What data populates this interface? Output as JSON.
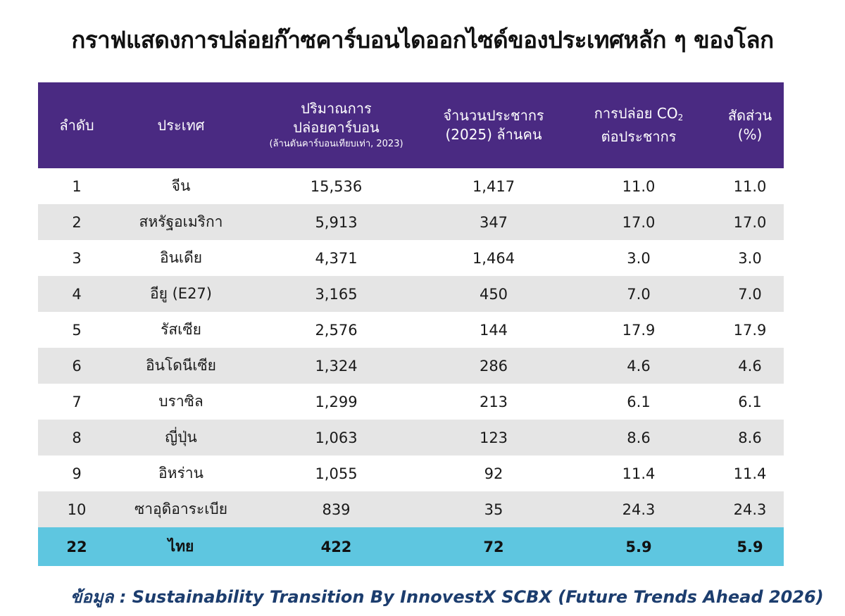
{
  "title": "กราฟแสดงการปล่อยก๊าซคาร์บอนไดออกไซด์ของประเทศหลัก ๆ ของโลก",
  "headers": {
    "rank": "ลำดับ",
    "country": "ประเทศ",
    "emissions_line1": "ปริมาณการ",
    "emissions_line2": "ปล่อยคาร์บอน",
    "emissions_sub": "(ล้านตันคาร์บอนเทียบเท่า, 2023)",
    "population_line1": "จำนวนประชากร",
    "population_line2": "(2025) ล้านคน",
    "per_capita_line1": "การปล่อย CO",
    "per_capita_sub": "2",
    "per_capita_line2": "ต่อประชากร",
    "share_line1": "สัดส่วน",
    "share_line2": "(%)"
  },
  "rows": [
    {
      "rank": "1",
      "country": "จีน",
      "emissions": "15,536",
      "population": "1,417",
      "per_capita": "11.0",
      "share": "11.0"
    },
    {
      "rank": "2",
      "country": "สหรัฐอเมริกา",
      "emissions": "5,913",
      "population": "347",
      "per_capita": "17.0",
      "share": "17.0"
    },
    {
      "rank": "3",
      "country": "อินเดีย",
      "emissions": "4,371",
      "population": "1,464",
      "per_capita": "3.0",
      "share": "3.0"
    },
    {
      "rank": "4",
      "country": "อียู (E27)",
      "emissions": "3,165",
      "population": "450",
      "per_capita": "7.0",
      "share": "7.0"
    },
    {
      "rank": "5",
      "country": "รัสเซีย",
      "emissions": "2,576",
      "population": "144",
      "per_capita": "17.9",
      "share": "17.9"
    },
    {
      "rank": "6",
      "country": "อินโดนีเซีย",
      "emissions": "1,324",
      "population": "286",
      "per_capita": "4.6",
      "share": "4.6"
    },
    {
      "rank": "7",
      "country": "บราซิล",
      "emissions": "1,299",
      "population": "213",
      "per_capita": "6.1",
      "share": "6.1"
    },
    {
      "rank": "8",
      "country": "ญี่ปุ่น",
      "emissions": "1,063",
      "population": "123",
      "per_capita": "8.6",
      "share": "8.6"
    },
    {
      "rank": "9",
      "country": "อิหร่าน",
      "emissions": "1,055",
      "population": "92",
      "per_capita": "11.4",
      "share": "11.4"
    },
    {
      "rank": "10",
      "country": "ซาอุดิอาระเบีย",
      "emissions": "839",
      "population": "35",
      "per_capita": "24.3",
      "share": "24.3"
    }
  ],
  "highlight_row": {
    "rank": "22",
    "country": "ไทย",
    "emissions": "422",
    "population": "72",
    "per_capita": "5.9",
    "share": "5.9"
  },
  "source": "ข้อมูล : Sustainability Transition By InnovestX SCBX (Future Trends Ahead 2026)",
  "colors": {
    "header_bg": "#4a2a82",
    "stripe_bg": "#e5e5e5",
    "highlight_bg": "#5ec6e0",
    "source_text": "#1c3d6e"
  }
}
